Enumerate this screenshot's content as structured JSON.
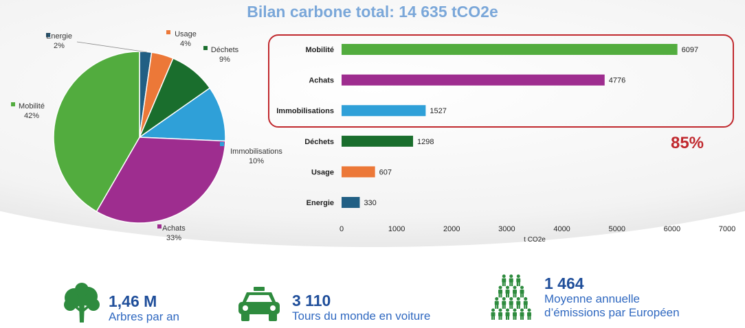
{
  "title": "Bilan carbone total: 14 635 tCO2e",
  "colors": {
    "Mobilité": "#52ac3e",
    "Achats": "#9e2d8f",
    "Immobilisations": "#2fa0d8",
    "Déchets": "#1a6e2d",
    "Usage": "#ec7838",
    "Energie": "#215f84",
    "highlight": "#c0282d",
    "stat_dark": "#1f4e9a",
    "stat_light": "#2f68c0",
    "icon_green": "#2e8b3e"
  },
  "highlight_label": "85%",
  "chart_data": [
    {
      "type": "pie",
      "categories": [
        "Energie",
        "Usage",
        "Déchets",
        "Immobilisations",
        "Achats",
        "Mobilité"
      ],
      "values": [
        330,
        607,
        1298,
        1527,
        4776,
        6097
      ],
      "percent_labels": [
        "2%",
        "4%",
        "9%",
        "10%",
        "33%",
        "42%"
      ]
    },
    {
      "type": "bar",
      "orientation": "horizontal",
      "categories": [
        "Mobilité",
        "Achats",
        "Immobilisations",
        "Déchets",
        "Usage",
        "Energie"
      ],
      "values": [
        6097,
        4776,
        1527,
        1298,
        607,
        330
      ],
      "xlabel": "t CO2e",
      "xlim": [
        0,
        7000
      ],
      "xticks": [
        0,
        1000,
        2000,
        3000,
        4000,
        5000,
        6000,
        7000
      ],
      "grid": false
    }
  ],
  "stats": [
    {
      "value": "1,46 M",
      "label": "Arbres par an",
      "icon": "tree-icon"
    },
    {
      "value": "3 110",
      "label": "Tours du monde en voiture",
      "icon": "car-icon"
    },
    {
      "value": "1 464",
      "label_line1": "Moyenne annuelle",
      "label_line2": "d’émissions par Européen",
      "icon": "people-icon"
    }
  ]
}
